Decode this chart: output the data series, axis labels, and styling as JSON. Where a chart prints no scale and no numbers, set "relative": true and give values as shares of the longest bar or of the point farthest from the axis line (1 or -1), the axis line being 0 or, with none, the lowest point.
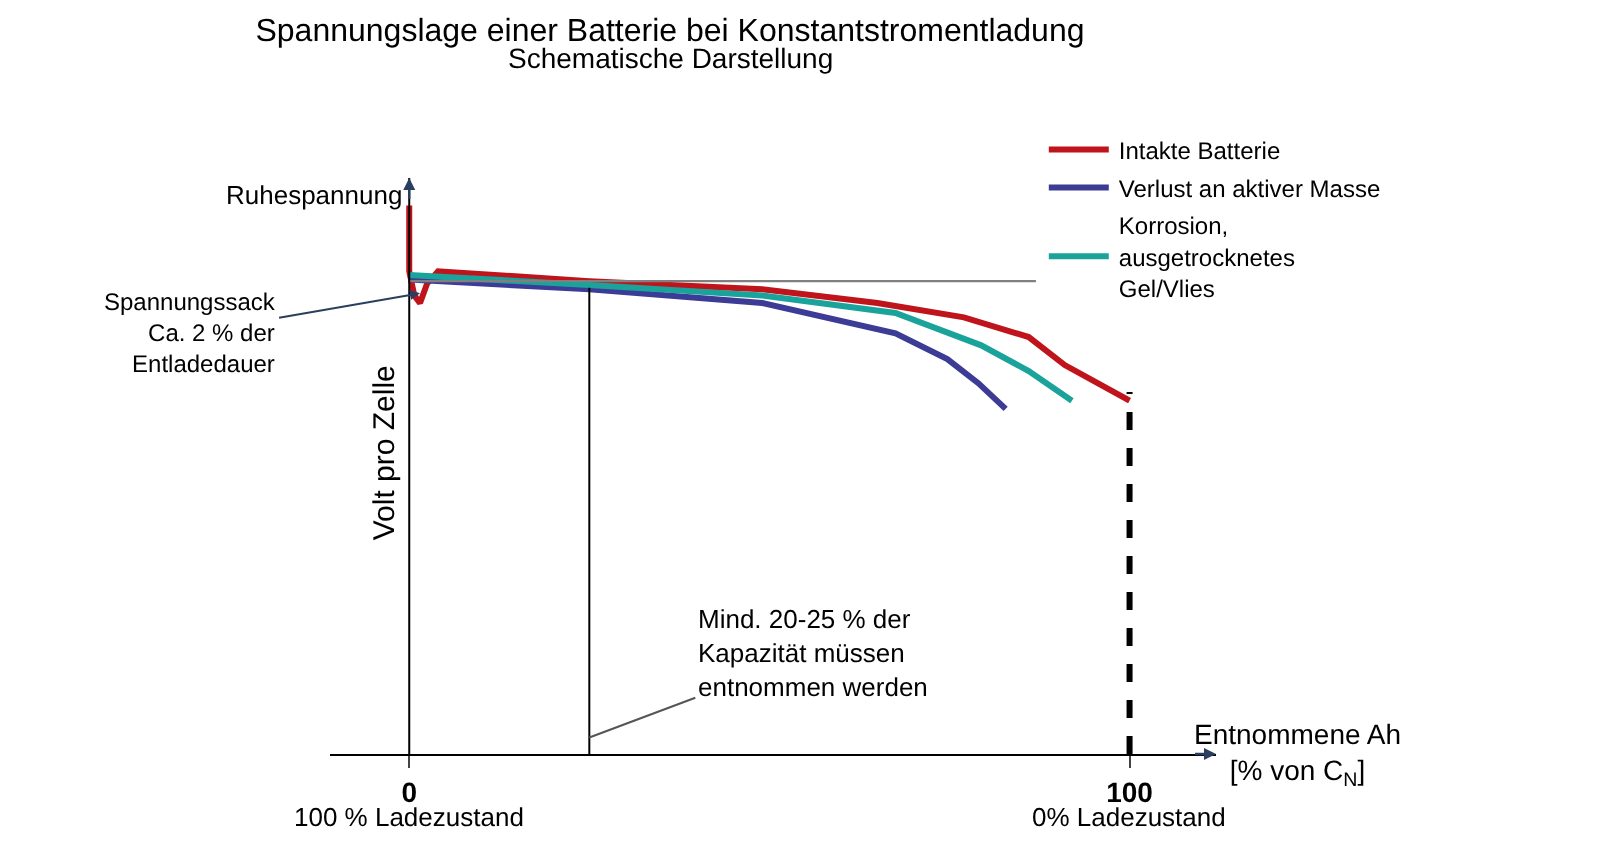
{
  "chart_data": {
    "type": "line",
    "title": "Spannungslage einer Batterie bei Konstantstromentladung",
    "subtitle": "Schematische Darstellung",
    "ylabel": "Volt pro Zelle",
    "xlabel": "Entnommene Ah\n[% von C$_{N}$]",
    "relative": true,
    "xlim": [
      -11,
      112
    ],
    "xticks": [
      0,
      100
    ],
    "series": [
      {
        "name": "Intakte Batterie",
        "color": "#c0141c",
        "x": [
          0,
          0,
          0.7,
          1.5,
          2.5,
          4,
          25,
          49,
          65,
          77,
          86,
          91,
          100
        ],
        "values": [
          1.0,
          0.88,
          0.836,
          0.822,
          0.858,
          0.88,
          0.862,
          0.847,
          0.822,
          0.796,
          0.76,
          0.709,
          0.644
        ]
      },
      {
        "name": "Verlust an aktiver Masse",
        "color": "#3c3c96",
        "x": [
          0,
          25,
          49,
          67.5,
          74.7,
          79,
          82.8
        ],
        "values": [
          0.865,
          0.847,
          0.822,
          0.767,
          0.72,
          0.676,
          0.629
        ]
      },
      {
        "name": "Korrosion,\nausgetrocknetes\nGel/Vlies",
        "color": "#1aa39a",
        "x": [
          0,
          25,
          49,
          67.5,
          79.4,
          86,
          92
        ],
        "values": [
          0.873,
          0.855,
          0.836,
          0.804,
          0.745,
          0.698,
          0.644
        ]
      },
      {
        "color": "#808080",
        "x": [
          0,
          87
        ],
        "values": [
          0.862,
          0.862
        ]
      }
    ],
    "ref_lines": [
      {
        "axis": "x",
        "value": 25,
        "label": "Mind. 20-25 % der\nKapazität müssen\nentnommen werden",
        "color": "#000000"
      },
      {
        "axis": "x",
        "value": 100,
        "color": "#000000",
        "line_style": "dashed"
      }
    ],
    "annotations": [
      {
        "text": "Ruhespannung",
        "x": 0,
        "y": 1
      },
      {
        "text": "Spannungssack\nCa. 2 % der\nEntladedauer",
        "x": 1.5,
        "y": 0.84
      },
      "100 % Ladezustand",
      "0% Ladezustand"
    ],
    "legend": "top right",
    "marker": "none",
    "line_style": "solid"
  }
}
